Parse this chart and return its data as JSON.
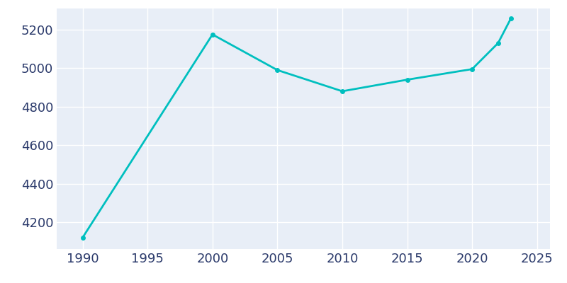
{
  "years": [
    1990,
    2000,
    2005,
    2010,
    2015,
    2020,
    2022,
    2023
  ],
  "population": [
    4120,
    5175,
    4990,
    4880,
    4940,
    4995,
    5130,
    5260
  ],
  "line_color": "#00BFBF",
  "marker": "o",
  "marker_size": 4,
  "background_color": "#E8EEF7",
  "outer_background": "#ffffff",
  "grid_color": "#ffffff",
  "xlabel": "",
  "ylabel": "",
  "xlim": [
    1988,
    2026
  ],
  "ylim": [
    4060,
    5310
  ],
  "xticks": [
    1990,
    1995,
    2000,
    2005,
    2010,
    2015,
    2020,
    2025
  ],
  "yticks": [
    4200,
    4400,
    4600,
    4800,
    5000,
    5200
  ],
  "tick_label_color": "#2B3A6B",
  "tick_fontsize": 13,
  "spine_visible": false,
  "linewidth": 2.0
}
